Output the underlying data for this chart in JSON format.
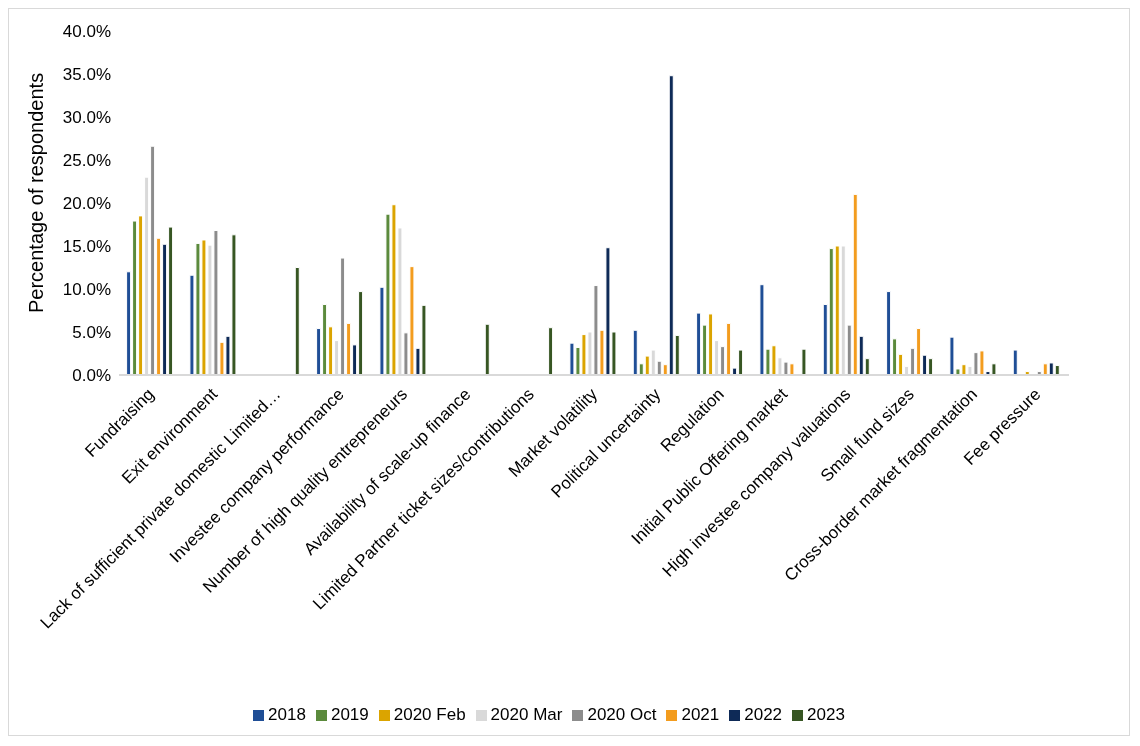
{
  "chart_data": {
    "type": "bar",
    "ylabel": "Percentage of respondents",
    "categories": [
      "Fundraising",
      "Exit environment",
      "Lack of sufficient private domestic  Limited…",
      "Investee company performance",
      "Number of high quality entrepreneurs",
      "Availability of scale-up finance",
      "Limited Partner ticket sizes/contributions",
      "Market volatility",
      "Political uncertainty",
      "Regulation",
      "Initial Public Offering market",
      "High investee company valuations",
      "Small fund sizes",
      "Cross-border market fragmentation",
      "Fee pressure"
    ],
    "series": [
      {
        "name": "2018",
        "color": "#1f4e96",
        "values": [
          12.0,
          11.6,
          null,
          5.4,
          10.2,
          null,
          null,
          3.7,
          5.2,
          7.2,
          10.5,
          8.2,
          9.7,
          4.4,
          2.9
        ]
      },
      {
        "name": "2019",
        "color": "#5b8a3c",
        "values": [
          17.9,
          15.3,
          null,
          8.2,
          18.7,
          null,
          null,
          3.2,
          1.3,
          5.8,
          3.0,
          14.7,
          4.2,
          0.7,
          null
        ]
      },
      {
        "name": "2020 Feb",
        "color": "#dba400",
        "values": [
          18.5,
          15.7,
          null,
          5.6,
          19.8,
          null,
          null,
          4.7,
          2.2,
          7.1,
          3.4,
          15.0,
          2.4,
          1.2,
          0.4
        ]
      },
      {
        "name": "2020 Mar",
        "color": "#d9d9d9",
        "values": [
          23.0,
          15.1,
          null,
          4.0,
          17.1,
          null,
          null,
          5.0,
          2.9,
          4.0,
          2.0,
          15.0,
          1.0,
          1.0,
          null
        ]
      },
      {
        "name": "2020 Oct",
        "color": "#8c8c8c",
        "values": [
          26.6,
          16.8,
          null,
          13.6,
          4.9,
          null,
          null,
          10.4,
          1.6,
          3.3,
          1.5,
          5.8,
          3.1,
          2.6,
          0.4
        ]
      },
      {
        "name": "2021",
        "color": "#f39c1e",
        "values": [
          15.9,
          3.8,
          null,
          6.0,
          12.6,
          null,
          null,
          5.2,
          1.2,
          6.0,
          1.3,
          21.0,
          5.4,
          2.8,
          1.3
        ]
      },
      {
        "name": "2022",
        "color": "#0e2a57",
        "values": [
          15.2,
          4.5,
          null,
          3.5,
          3.1,
          null,
          null,
          14.8,
          34.8,
          0.8,
          null,
          4.5,
          2.3,
          0.4,
          1.4
        ]
      },
      {
        "name": "2023",
        "color": "#375623",
        "values": [
          17.2,
          16.3,
          12.5,
          9.7,
          8.1,
          5.9,
          5.5,
          5.0,
          4.6,
          2.9,
          3.0,
          1.9,
          1.9,
          1.3,
          1.1
        ]
      }
    ],
    "ylim": [
      0,
      40
    ],
    "yticks": [
      {
        "value": 0,
        "label": "0.0%"
      },
      {
        "value": 5,
        "label": "5.0%"
      },
      {
        "value": 10,
        "label": "10.0%"
      },
      {
        "value": 15,
        "label": "15.0%"
      },
      {
        "value": 20,
        "label": "20.0%"
      },
      {
        "value": 25,
        "label": "25.0%"
      },
      {
        "value": 30,
        "label": "30.0%"
      },
      {
        "value": 35,
        "label": "35.0%"
      },
      {
        "value": 40,
        "label": "40.0%"
      }
    ],
    "grid": false,
    "legend": "bottom"
  }
}
